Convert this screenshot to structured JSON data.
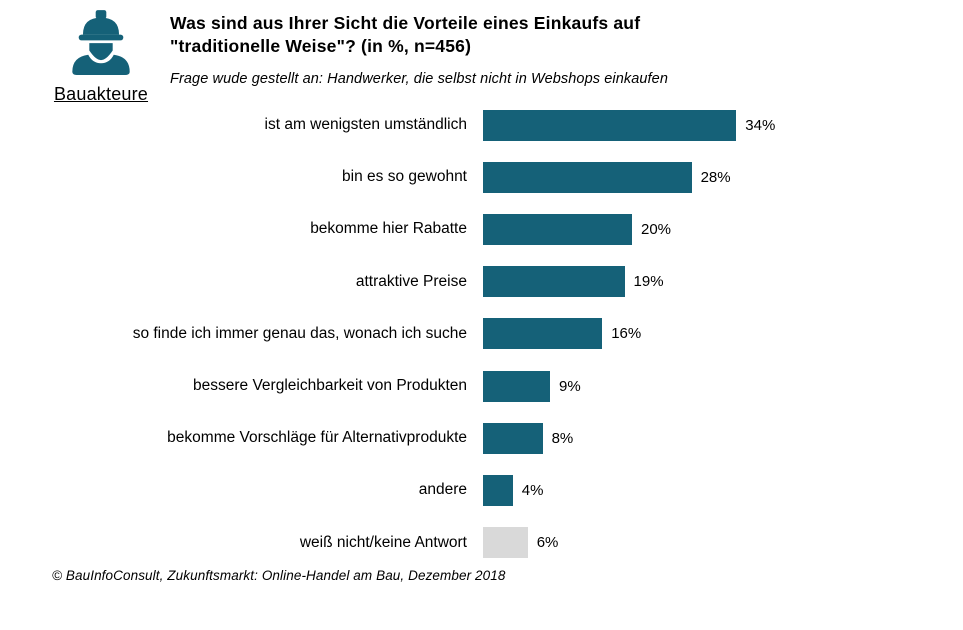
{
  "colors": {
    "accent": "#156178",
    "muted_bar": "#D9D9D9",
    "text": "#000000",
    "background": "#FFFFFF"
  },
  "header": {
    "brand_icon": "construction-worker-icon",
    "brand_label": "Bauakteure",
    "title_line1": "Was sind aus Ihrer Sicht die Vorteile eines Einkaufs auf",
    "title_line2": "\"traditionelle Weise\"? (in %, n=456)",
    "subtitle": "Frage wude gestellt an: Handwerker, die selbst nicht in Webshops einkaufen"
  },
  "chart_data": {
    "type": "bar",
    "orientation": "horizontal",
    "title": "Was sind aus Ihrer Sicht die Vorteile eines Einkaufs auf \"traditionelle Weise\"? (in %, n=456)",
    "subtitle": "Frage wude gestellt an: Handwerker, die selbst nicht in Webshops einkaufen",
    "unit": "%",
    "n": 456,
    "xlim": [
      0,
      40
    ],
    "grid": false,
    "legend": false,
    "axes_visible": false,
    "categories": [
      "ist am wenigsten umständlich",
      "bin es so gewohnt",
      "bekomme hier Rabatte",
      "attraktive Preise",
      "so finde ich immer genau das, wonach ich suche",
      "bessere Vergleichbarkeit von Produkten",
      "bekomme Vorschläge für Alternativprodukte",
      "andere",
      "weiß nicht/keine Antwort"
    ],
    "values": [
      34,
      28,
      20,
      19,
      16,
      9,
      8,
      4,
      6
    ],
    "value_labels": [
      "34%",
      "28%",
      "20%",
      "19%",
      "16%",
      "9%",
      "8%",
      "4%",
      "6%"
    ],
    "bar_colors": [
      "#156178",
      "#156178",
      "#156178",
      "#156178",
      "#156178",
      "#156178",
      "#156178",
      "#156178",
      "#D9D9D9"
    ]
  },
  "footer": {
    "source": "© BauInfoConsult, Zukunftsmarkt: Online-Handel am Bau, Dezember 2018"
  }
}
